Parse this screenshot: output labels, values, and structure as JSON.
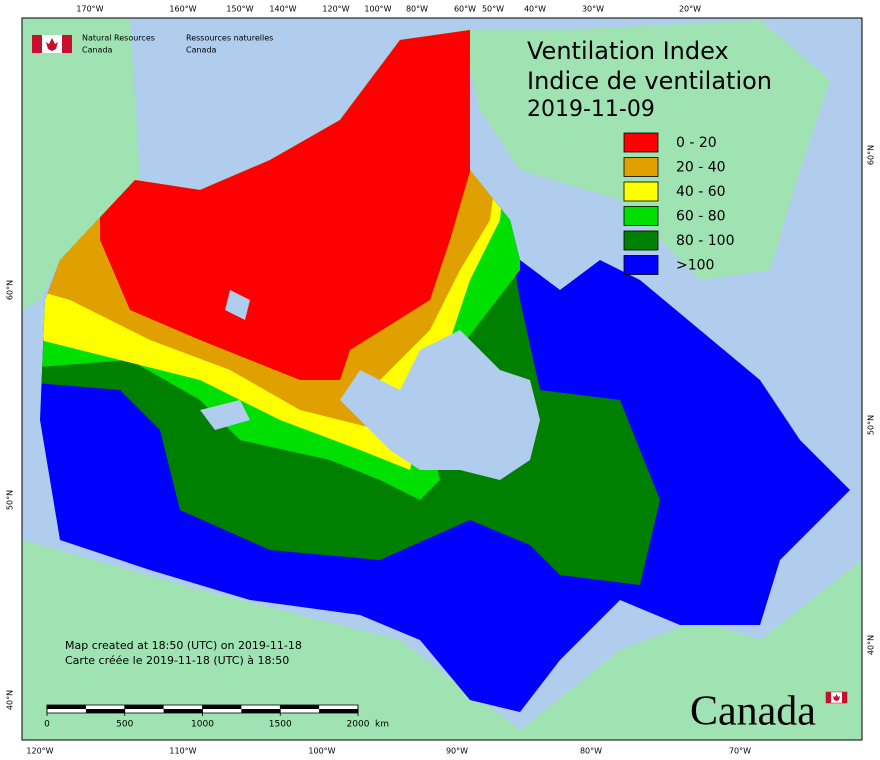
{
  "header": {
    "agency_en": [
      "Natural Resources",
      "Canada"
    ],
    "agency_fr": [
      "Ressources naturelles",
      "Canada"
    ]
  },
  "title": [
    "Ventilation Index",
    "Indice de ventilation"
  ],
  "date": "2019-11-09",
  "legend": [
    {
      "label": "0 - 20",
      "color": "#ff0000"
    },
    {
      "label": "20 - 40",
      "color": "#e0a000"
    },
    {
      "label": "40 - 60",
      "color": "#ffff00"
    },
    {
      "label": "60 - 80",
      "color": "#00e000"
    },
    {
      "label": "80 - 100",
      "color": "#008000"
    },
    {
      "label": ">100",
      "color": "#0000ff"
    }
  ],
  "graticule": {
    "top": [
      "170°W",
      "160°W",
      "150°W",
      "140°W",
      "120°W",
      "100°W",
      "80°W",
      "60°W",
      "50°W",
      "40°W",
      "30°W",
      "20°W"
    ],
    "bottom": [
      "120°W",
      "110°W",
      "100°W",
      "90°W",
      "80°W",
      "70°W"
    ],
    "left": [
      "60°N",
      "50°N",
      "40°N"
    ],
    "right": [
      "60°N",
      "50°N",
      "40°N"
    ]
  },
  "notes": [
    "Map created at 18:50 (UTC) on 2019-11-18",
    "Carte créée le 2019-11-18 (UTC) à 18:50"
  ],
  "scale_bar": {
    "ticks": [
      0,
      500,
      1000,
      1500,
      2000
    ],
    "unit": "km"
  },
  "wordmark": "Canada"
}
